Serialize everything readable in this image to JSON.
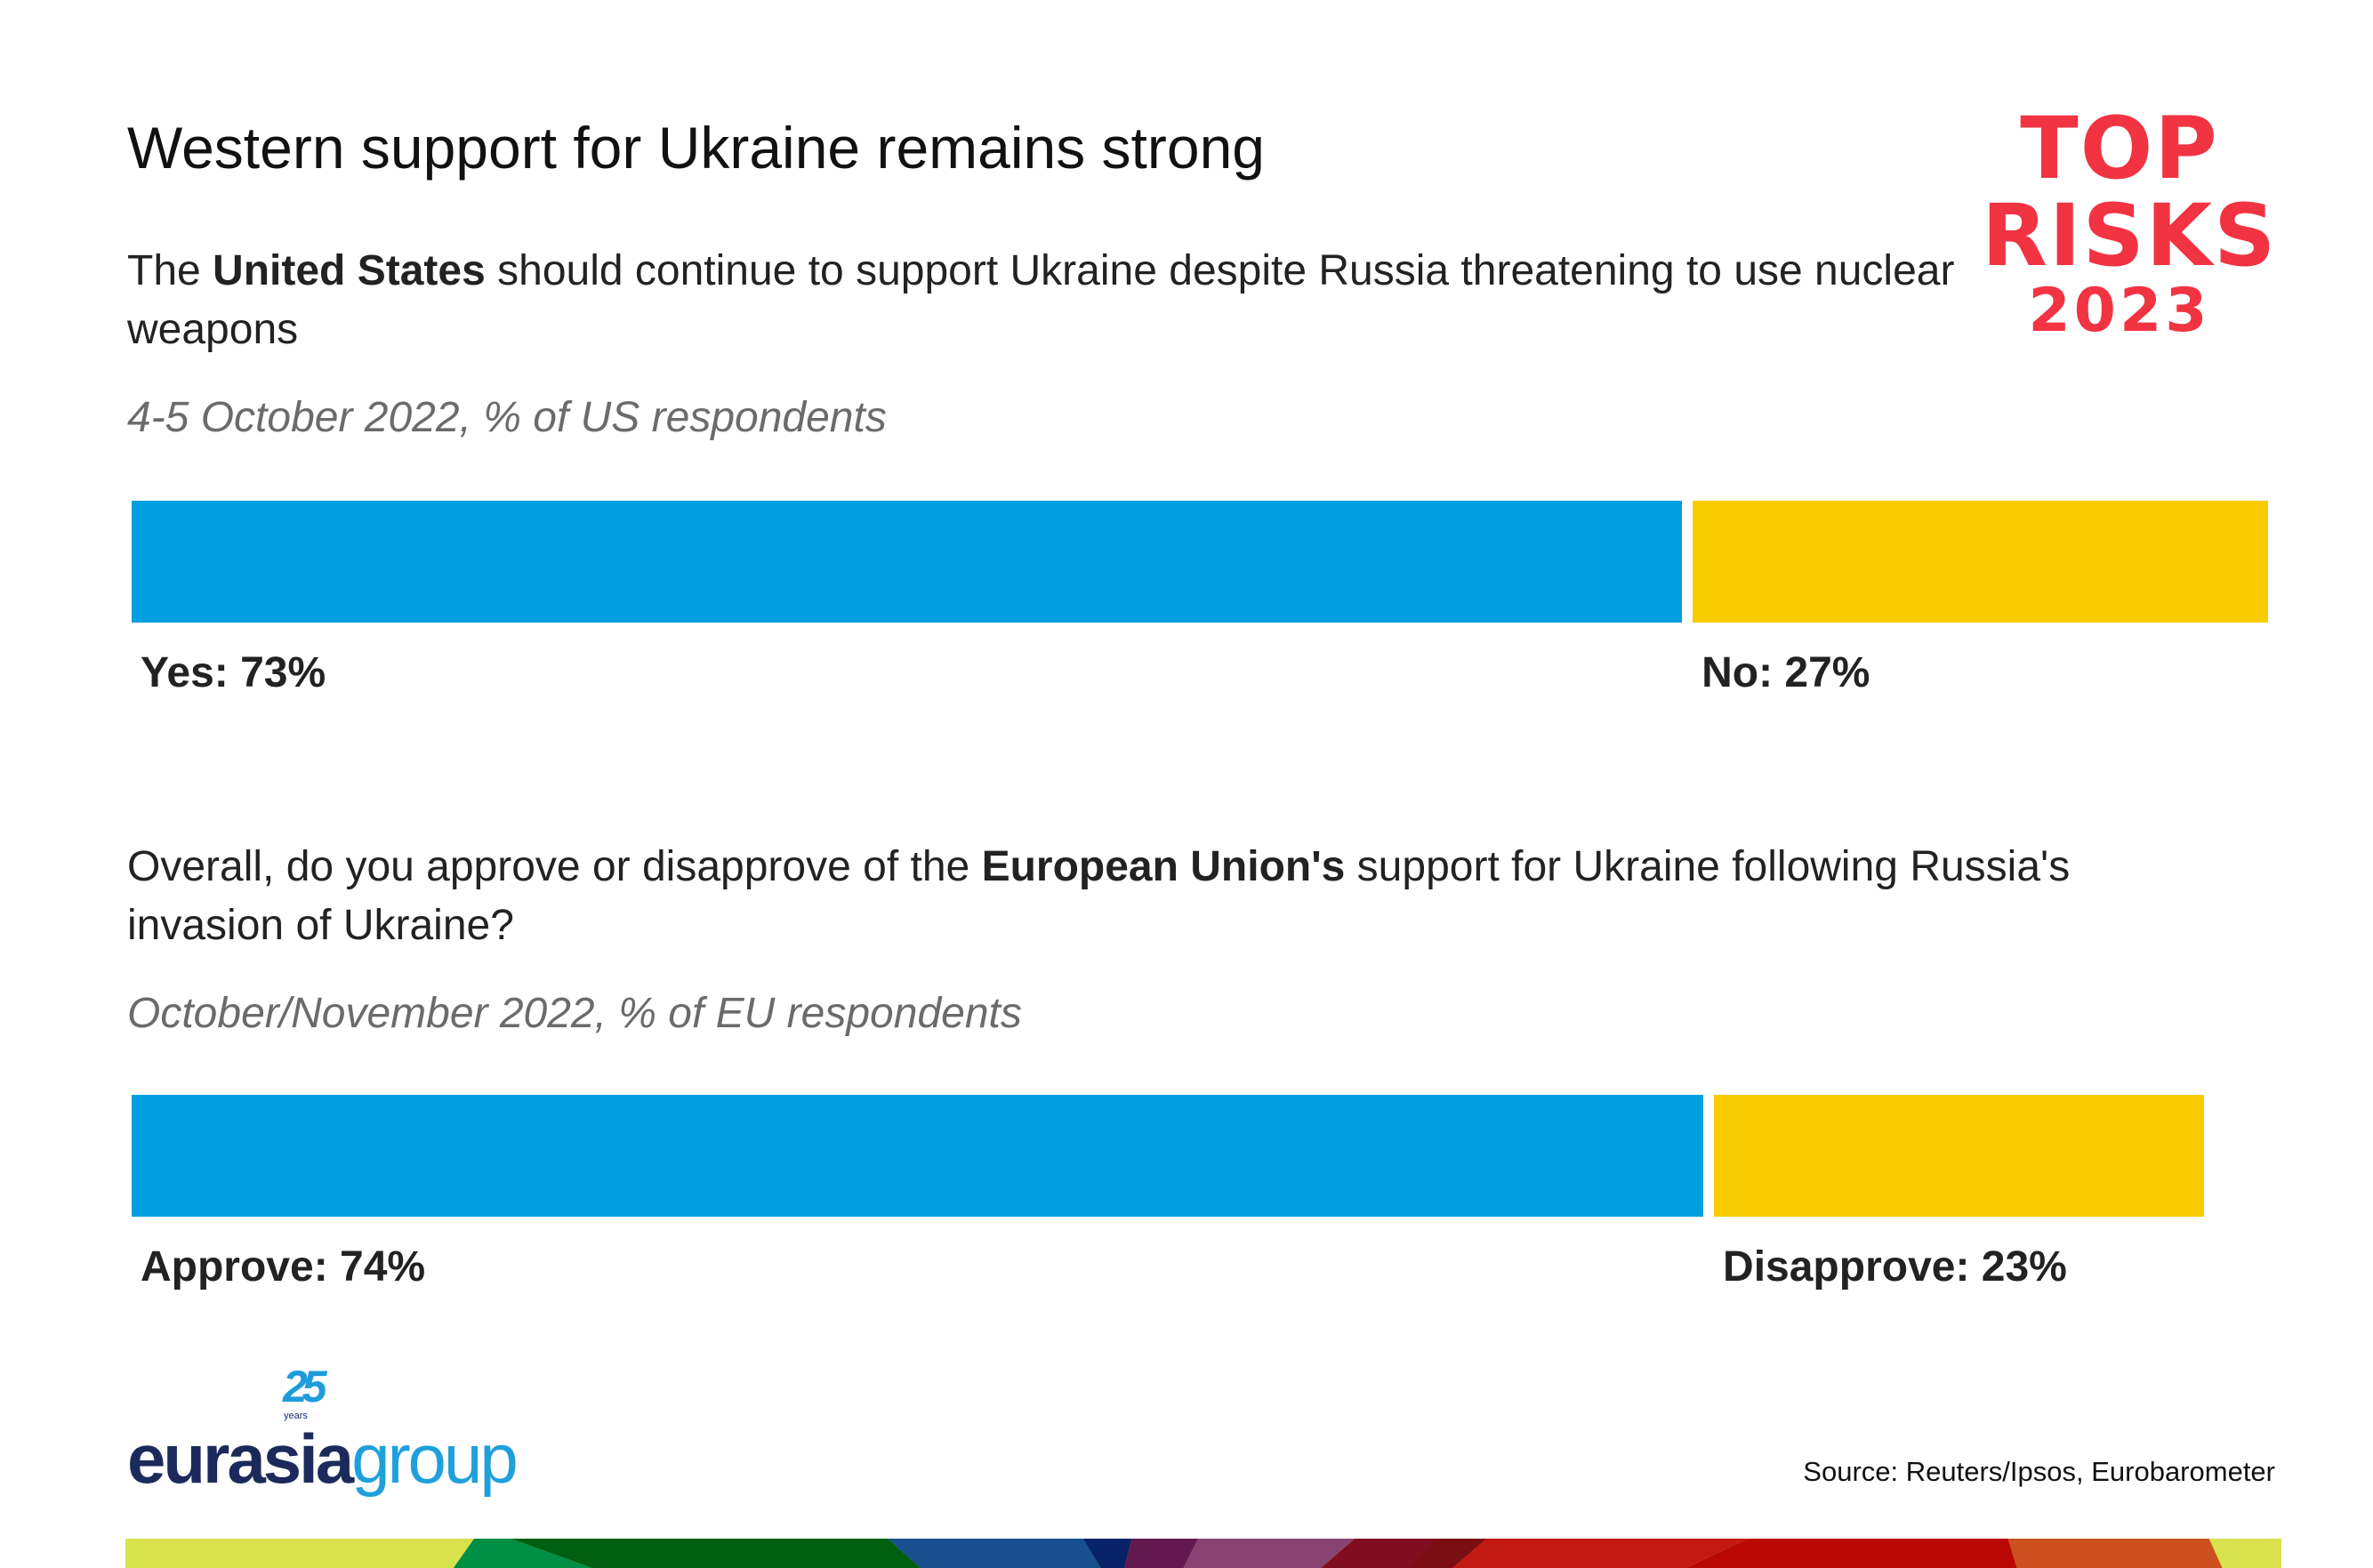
{
  "title": "Western support for Ukraine remains strong",
  "logo": {
    "text_lines": [
      "TOP",
      "RISKS",
      "2023"
    ],
    "color": "#f23342"
  },
  "chart_data": [
    {
      "type": "bar",
      "orientation": "horizontal-stacked",
      "question": {
        "pre": "The ",
        "bold": "United States",
        "post": " should continue to support Ukraine despite Russia threatening to use nuclear weapons"
      },
      "subtitle": "4-5 October 2022, % of US respondents",
      "categories": [
        "Yes",
        "No"
      ],
      "values": [
        73,
        27
      ],
      "labels": [
        "Yes: 73%",
        "No: 27%"
      ],
      "colors": [
        "#009fe0",
        "#f8cc00"
      ]
    },
    {
      "type": "bar",
      "orientation": "horizontal-stacked",
      "question": {
        "pre": "Overall, do you approve or disapprove of the ",
        "bold": "European Union's",
        "post": " support for Ukraine following Russia's invasion of Ukraine?"
      },
      "subtitle": "October/November 2022, % of EU respondents",
      "categories": [
        "Approve",
        "Disapprove"
      ],
      "values": [
        74,
        23
      ],
      "labels": [
        "Approve: 74%",
        "Disapprove: 23%"
      ],
      "colors": [
        "#009fe0",
        "#f8cc00"
      ]
    }
  ],
  "footer": {
    "brand": {
      "badge": "25",
      "badge_sub": "years",
      "word1": "eurasia",
      "word2": "group"
    },
    "source": "Source: Reuters/Ipsos, Eurobarometer"
  }
}
